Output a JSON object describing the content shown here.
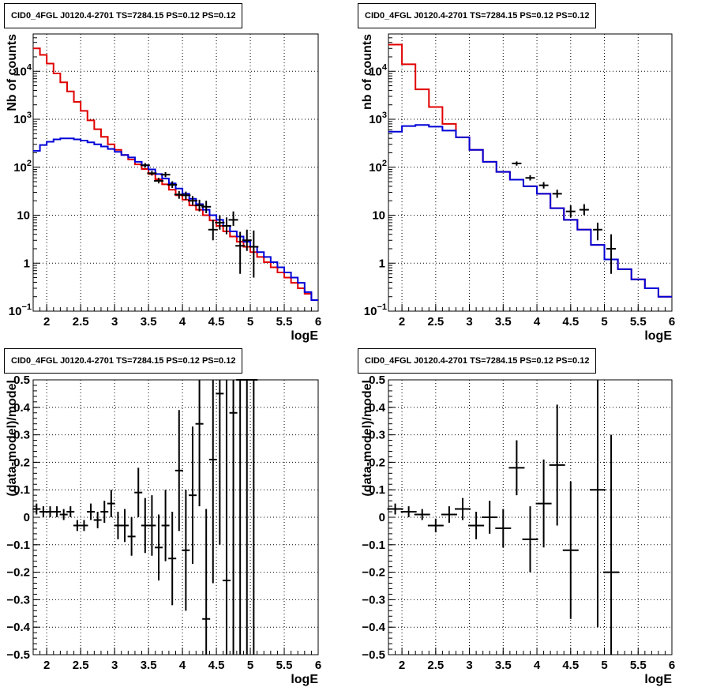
{
  "colors": {
    "total_model": "#e00000",
    "source_model": "#0000d8",
    "data": "#000000",
    "grid": "#000000",
    "frame": "#000000"
  },
  "chart_data": [
    {
      "id": "counts-left",
      "type": "line",
      "title": "CID0_4FGL J0120.4-2701 TS=7284.15 PS=0.12 PS=0.12",
      "xlabel": "logE",
      "ylabel": "Nb of counts",
      "log_y": true,
      "grid": true,
      "xlim": [
        1.8,
        6.0
      ],
      "ylim": [
        0.1,
        60000
      ],
      "x_ticks": [
        2,
        2.5,
        3,
        3.5,
        4,
        4.5,
        5,
        5.5,
        6
      ],
      "x_tick_labels": [
        "2",
        "2.5",
        "3",
        "3.5",
        "4",
        "4.5",
        "5",
        "5.5",
        "6"
      ],
      "y_ticks": [
        {
          "value": 0.1,
          "base": "10",
          "exp": "−1"
        },
        {
          "value": 1,
          "base": "1",
          "exp": ""
        },
        {
          "value": 10,
          "base": "10",
          "exp": ""
        },
        {
          "value": 100,
          "base": "10",
          "exp": "2"
        },
        {
          "value": 1000,
          "base": "10",
          "exp": "3"
        },
        {
          "value": 10000,
          "base": "10",
          "exp": "4"
        }
      ],
      "bin_edges": [
        1.8,
        1.9,
        2.0,
        2.1,
        2.2,
        2.3,
        2.4,
        2.5,
        2.6,
        2.7,
        2.8,
        2.9,
        3.0,
        3.1,
        3.2,
        3.3,
        3.4,
        3.5,
        3.6,
        3.7,
        3.8,
        3.9,
        4.0,
        4.1,
        4.2,
        4.3,
        4.4,
        4.5,
        4.6,
        4.7,
        4.8,
        4.9,
        5.0,
        5.1,
        5.2,
        5.3,
        5.4,
        5.5,
        5.6,
        5.7,
        5.8,
        5.9,
        6.0
      ],
      "series": [
        {
          "values": [
            30000,
            22000,
            14500,
            9000,
            5900,
            3800,
            2300,
            1500,
            950,
            620,
            430,
            300,
            230,
            180,
            145,
            115,
            92,
            72,
            56,
            44,
            34,
            26,
            21,
            16,
            13,
            10,
            7.8,
            6,
            4.6,
            3.6,
            2.8,
            2.2,
            1.7,
            1.35,
            1.05,
            0.82,
            0.64,
            0.5,
            0.39,
            0.3,
            0.23,
            0.17
          ]
        },
        {
          "values": [
            220,
            290,
            340,
            380,
            400,
            400,
            380,
            360,
            330,
            300,
            270,
            240,
            210,
            180,
            160,
            130,
            110,
            90,
            72,
            58,
            46,
            36,
            28,
            22,
            17,
            13,
            10,
            8,
            6,
            4.6,
            3.6,
            2.8,
            2.2,
            1.7,
            1.35,
            1.05,
            0.82,
            0.64,
            0.5,
            0.39,
            0.25,
            0.17
          ]
        },
        {
          "x": [
            3.45,
            3.55,
            3.65,
            3.75,
            3.85,
            3.95,
            4.05,
            4.15,
            4.25,
            4.35,
            4.45,
            4.55,
            4.65,
            4.75,
            4.85,
            4.95,
            5.05
          ],
          "values": [
            110,
            75,
            52,
            70,
            43,
            27,
            26,
            20,
            16,
            15,
            5,
            7,
            6,
            8,
            2.3,
            3,
            2.2
          ],
          "err_lo": [
            98,
            67,
            46,
            62,
            37,
            22,
            21,
            16,
            12,
            11,
            3,
            5,
            4,
            6,
            0.6,
            1.8,
            0.5
          ],
          "err_hi": [
            122,
            84,
            60,
            79,
            51,
            32,
            31,
            25,
            21,
            20,
            8,
            10,
            9,
            12,
            4.5,
            5,
            4.8
          ]
        }
      ]
    },
    {
      "id": "counts-right",
      "type": "line",
      "title": "CID0_4FGL J0120.4-2701 TS=7284.15 PS=0.12 PS=0.12",
      "xlabel": "logE",
      "ylabel": "nb of counts",
      "log_y": true,
      "grid": true,
      "xlim": [
        1.8,
        6.0
      ],
      "ylim": [
        0.1,
        60000
      ],
      "x_ticks": [
        2,
        2.5,
        3,
        3.5,
        4,
        4.5,
        5,
        5.5,
        6
      ],
      "x_tick_labels": [
        "2",
        "2.5",
        "3",
        "3.5",
        "4",
        "4.5",
        "5",
        "5.5",
        "6"
      ],
      "y_ticks": [
        {
          "value": 0.1,
          "base": "10",
          "exp": "−1"
        },
        {
          "value": 1,
          "base": "1",
          "exp": ""
        },
        {
          "value": 10,
          "base": "10",
          "exp": ""
        },
        {
          "value": 100,
          "base": "10",
          "exp": "2"
        },
        {
          "value": 1000,
          "base": "10",
          "exp": "3"
        },
        {
          "value": 10000,
          "base": "10",
          "exp": "4"
        }
      ],
      "bin_edges": [
        1.8,
        2.0,
        2.2,
        2.4,
        2.6,
        2.8,
        3.0,
        3.2,
        3.4,
        3.6,
        3.8,
        4.0,
        4.2,
        4.4,
        4.6,
        4.8,
        5.0,
        5.2,
        5.4,
        5.6,
        5.8,
        6.0
      ],
      "series": [
        {
          "values": [
            36000,
            14000,
            4200,
            1800,
            800,
            420,
            230,
            130,
            80,
            55,
            40,
            28,
            14,
            8,
            5,
            2.4,
            1.2,
            0.75,
            0.46,
            0.3,
            0.2
          ]
        },
        {
          "values": [
            550,
            720,
            760,
            700,
            580,
            420,
            230,
            130,
            80,
            55,
            40,
            28,
            14,
            8,
            5,
            2.4,
            1.2,
            0.75,
            0.46,
            0.3,
            0.2
          ]
        },
        {
          "x": [
            3.7,
            3.9,
            4.1,
            4.3,
            4.5,
            4.7,
            4.9,
            5.1
          ],
          "values": [
            120,
            60,
            42,
            28,
            12,
            13,
            5,
            2
          ],
          "err_lo": [
            108,
            53,
            36,
            23,
            9,
            10,
            3,
            0.6
          ],
          "err_hi": [
            132,
            68,
            49,
            34,
            16,
            17,
            7,
            4
          ]
        }
      ]
    },
    {
      "id": "resid-left",
      "type": "scatter",
      "title": "CID0_4FGL J0120.4-2701 TS=7284.15 PS=0.12 PS=0.12",
      "xlabel": "logE",
      "ylabel": "(data-model)/model",
      "log_y": false,
      "grid": true,
      "xlim": [
        1.8,
        6.0
      ],
      "ylim": [
        -0.5,
        0.5
      ],
      "x_ticks": [
        2,
        2.5,
        3,
        3.5,
        4,
        4.5,
        5,
        5.5,
        6
      ],
      "x_tick_labels": [
        "2",
        "2.5",
        "3",
        "3.5",
        "4",
        "4.5",
        "5",
        "5.5",
        "6"
      ],
      "y_ticks": [
        {
          "value": -0.5,
          "label": "−0.5"
        },
        {
          "value": -0.4,
          "label": "−0.4"
        },
        {
          "value": -0.3,
          "label": "−0.3"
        },
        {
          "value": -0.2,
          "label": "−0.2"
        },
        {
          "value": -0.1,
          "label": "−0.1"
        },
        {
          "value": 0,
          "label": "0"
        },
        {
          "value": 0.1,
          "label": "0.1"
        },
        {
          "value": 0.2,
          "label": "0.2"
        },
        {
          "value": 0.3,
          "label": "0.3"
        },
        {
          "value": 0.4,
          "label": "0.4"
        },
        {
          "value": 0.5,
          "label": "0.5"
        }
      ],
      "series": [
        {
          "x": [
            1.85,
            1.95,
            2.05,
            2.15,
            2.25,
            2.35,
            2.45,
            2.55,
            2.65,
            2.75,
            2.85,
            2.95,
            3.05,
            3.15,
            3.25,
            3.35,
            3.45,
            3.55,
            3.65,
            3.75,
            3.85,
            3.95,
            4.05,
            4.15,
            4.25,
            4.35,
            4.45,
            4.55,
            4.65,
            4.75,
            4.85,
            4.95,
            5.05
          ],
          "values": [
            0.03,
            0.02,
            0.02,
            0.02,
            0.01,
            0.02,
            -0.03,
            -0.03,
            0.02,
            -0.01,
            0.02,
            0.05,
            -0.03,
            -0.03,
            -0.07,
            0.09,
            -0.03,
            -0.03,
            -0.11,
            -0.03,
            -0.15,
            0.17,
            -0.12,
            0.08,
            0.34,
            -0.37,
            0.21,
            0.45,
            -0.23,
            0.38,
            0.5,
            0.5,
            0.5
          ],
          "err": [
            0.02,
            0.02,
            0.02,
            0.02,
            0.02,
            0.02,
            0.02,
            0.02,
            0.03,
            0.03,
            0.04,
            0.05,
            0.05,
            0.06,
            0.07,
            0.09,
            0.1,
            0.11,
            0.12,
            0.13,
            0.17,
            0.22,
            0.22,
            0.25,
            0.3,
            0.4,
            0.45,
            0.55,
            0.75,
            0.9,
            0.0,
            0.0,
            0.0
          ]
        }
      ]
    },
    {
      "id": "resid-right",
      "type": "scatter",
      "title": "CID0_4FGL J0120.4-2701 TS=7284.15 PS=0.12 PS=0.12",
      "xlabel": "logE",
      "ylabel": "(data-model)/model",
      "log_y": false,
      "grid": true,
      "xlim": [
        1.8,
        6.0
      ],
      "ylim": [
        -0.5,
        0.5
      ],
      "x_ticks": [
        2,
        2.5,
        3,
        3.5,
        4,
        4.5,
        5,
        5.5,
        6
      ],
      "x_tick_labels": [
        "2",
        "2.5",
        "3",
        "3.5",
        "4",
        "4.5",
        "5",
        "5.5",
        "6"
      ],
      "y_ticks": [
        {
          "value": -0.5,
          "label": "−0.5"
        },
        {
          "value": -0.4,
          "label": "−0.4"
        },
        {
          "value": -0.3,
          "label": "−0.3"
        },
        {
          "value": -0.2,
          "label": "−0.2"
        },
        {
          "value": -0.1,
          "label": "−0.1"
        },
        {
          "value": 0,
          "label": "0"
        },
        {
          "value": 0.1,
          "label": "0.1"
        },
        {
          "value": 0.2,
          "label": "0.2"
        },
        {
          "value": 0.3,
          "label": "0.3"
        },
        {
          "value": 0.4,
          "label": "0.4"
        },
        {
          "value": 0.5,
          "label": "0.5"
        }
      ],
      "series": [
        {
          "x": [
            1.9,
            2.1,
            2.3,
            2.5,
            2.7,
            2.9,
            3.1,
            3.3,
            3.5,
            3.7,
            3.9,
            4.1,
            4.3,
            4.5,
            4.9,
            5.1
          ],
          "values": [
            0.03,
            0.02,
            0.01,
            -0.03,
            0.01,
            0.03,
            -0.03,
            0.0,
            -0.04,
            0.18,
            -0.08,
            0.05,
            0.19,
            -0.12,
            0.1,
            -0.2
          ],
          "err": [
            0.02,
            0.02,
            0.02,
            0.025,
            0.03,
            0.04,
            0.05,
            0.06,
            0.07,
            0.1,
            0.12,
            0.16,
            0.22,
            0.25,
            0.5,
            0.5
          ]
        }
      ]
    }
  ]
}
